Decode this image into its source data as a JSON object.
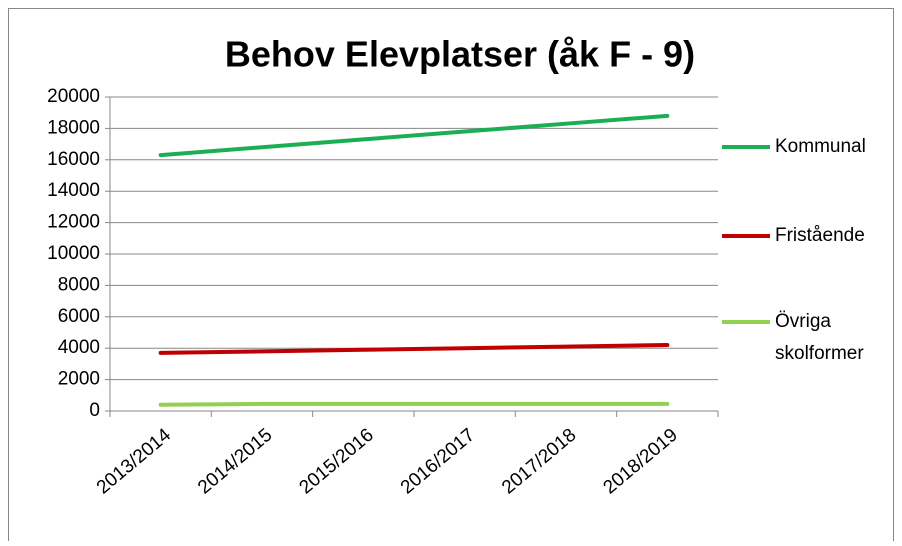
{
  "chart_data": {
    "type": "line",
    "title": "Behov Elevplatser  (åk F - 9)",
    "categories": [
      "2013/2014",
      "2014/2015",
      "2015/2016",
      "2016/2017",
      "2017/2018",
      "2018/2019"
    ],
    "series": [
      {
        "name": "Kommunal",
        "color": "#1aaf54",
        "values": [
          16300,
          16800,
          17300,
          17800,
          18300,
          18800
        ]
      },
      {
        "name": "Fristående",
        "color": "#c00000",
        "values": [
          3700,
          3800,
          3900,
          4000,
          4100,
          4200
        ]
      },
      {
        "name": "Övriga skolformer",
        "color": "#92d050",
        "values": [
          400,
          450,
          450,
          450,
          450,
          450
        ]
      }
    ],
    "ylim": [
      0,
      20000
    ],
    "yticks": [
      0,
      2000,
      4000,
      6000,
      8000,
      10000,
      12000,
      14000,
      16000,
      18000,
      20000
    ],
    "grid": true,
    "legend": "right"
  }
}
